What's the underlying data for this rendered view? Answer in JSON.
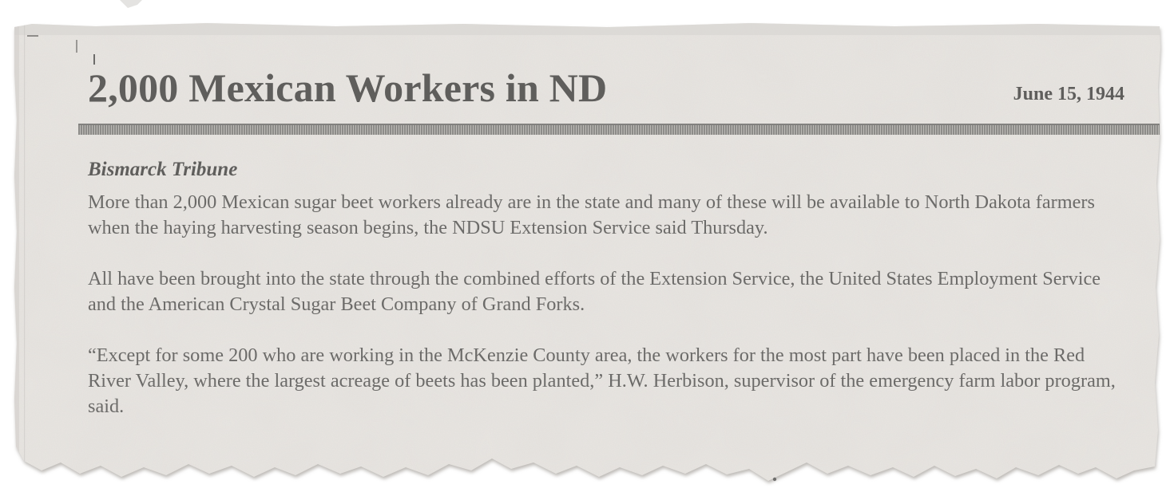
{
  "clipping": {
    "headline": "2,000 Mexican Workers in ND",
    "date": "June 15, 1944",
    "source": "Bismarck Tribune",
    "paragraphs": [
      "More than 2,000 Mexican sugar beet workers already are in the state and many of these will be available to North Dakota farmers when the haying harvesting season begins, the NDSU Extension Service said Thursday.",
      "All have been brought into the state through the combined efforts of the Extension Service, the United States Employment Service and the American Crystal Sugar Beet Company of Grand Forks.",
      "“Except for some 200 who are working in the McKenzie County area, the workers for the most part have been placed in the Red River Valley, where the largest acreage of beets has been planted,” H.W. Herbison, supervisor of the emergency farm labor program, said."
    ]
  },
  "colors": {
    "paper": "#e9e6e2",
    "ink_heading": "#5f5e5c",
    "ink_body": "#6c6b69"
  }
}
